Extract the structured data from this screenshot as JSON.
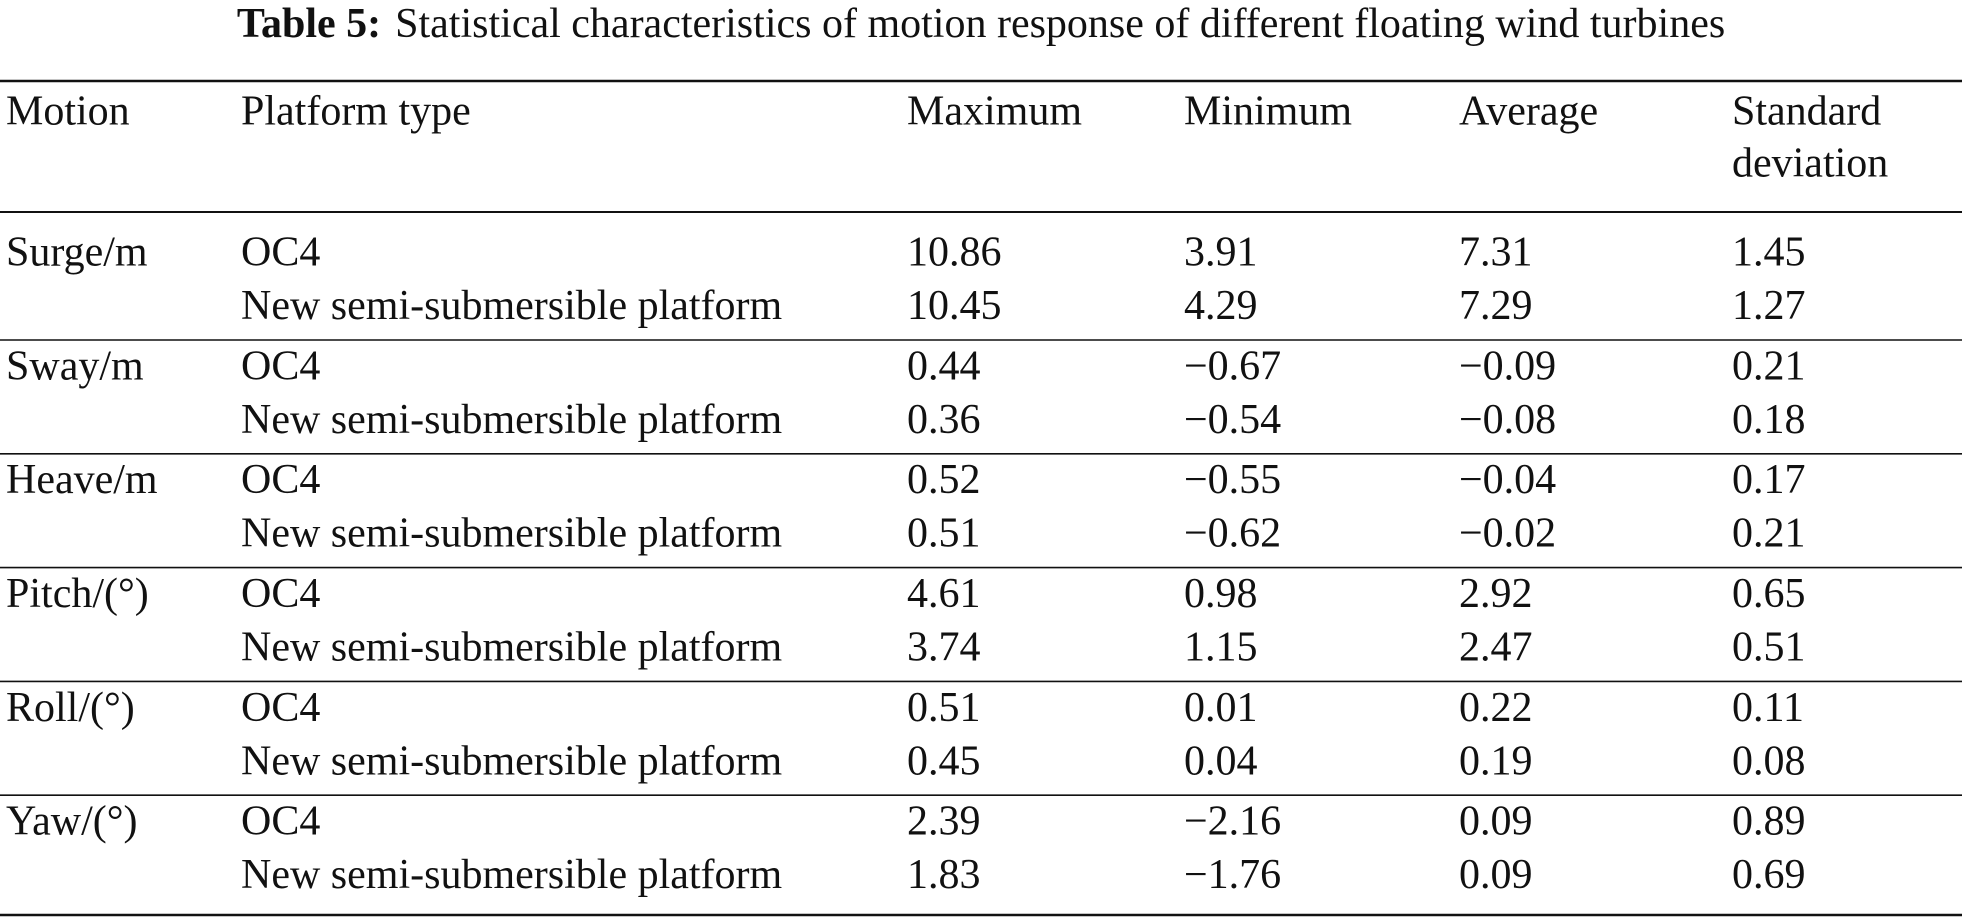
{
  "title": {
    "label": "Table 5:",
    "text": "Statistical characteristics of motion response of different floating wind turbines"
  },
  "table": {
    "header": [
      "Motion",
      "Platform type",
      "Maximum",
      "Minimum",
      "Average",
      [
        "Standard",
        "deviation"
      ]
    ],
    "groups": [
      {
        "motion": "Surge/m",
        "rows": [
          [
            "OC4",
            "10.86",
            "3.91",
            "7.31",
            "1.45"
          ],
          [
            "New semi-submersible platform",
            "10.45",
            "4.29",
            "7.29",
            "1.27"
          ]
        ]
      },
      {
        "motion": "Sway/m",
        "rows": [
          [
            "OC4",
            "0.44",
            "−0.67",
            "−0.09",
            "0.21"
          ],
          [
            "New semi-submersible platform",
            "0.36",
            "−0.54",
            "−0.08",
            "0.18"
          ]
        ]
      },
      {
        "motion": "Heave/m",
        "rows": [
          [
            "OC4",
            "0.52",
            "−0.55",
            "−0.04",
            "0.17"
          ],
          [
            "New semi-submersible platform",
            "0.51",
            "−0.62",
            "−0.02",
            "0.21"
          ]
        ]
      },
      {
        "motion": "Pitch/(°)",
        "rows": [
          [
            "OC4",
            "4.61",
            "0.98",
            "2.92",
            "0.65"
          ],
          [
            "New semi-submersible platform",
            "3.74",
            "1.15",
            "2.47",
            "0.51"
          ]
        ]
      },
      {
        "motion": "Roll/(°)",
        "rows": [
          [
            "OC4",
            "0.51",
            "0.01",
            "0.22",
            "0.11"
          ],
          [
            "New semi-submersible platform",
            "0.45",
            "0.04",
            "0.19",
            "0.08"
          ]
        ]
      },
      {
        "motion": "Yaw/(°)",
        "rows": [
          [
            "OC4",
            "2.39",
            "−2.16",
            "0.09",
            "0.89"
          ],
          [
            "New semi-submersible platform",
            "1.83",
            "−1.76",
            "0.09",
            "0.69"
          ]
        ]
      }
    ]
  }
}
